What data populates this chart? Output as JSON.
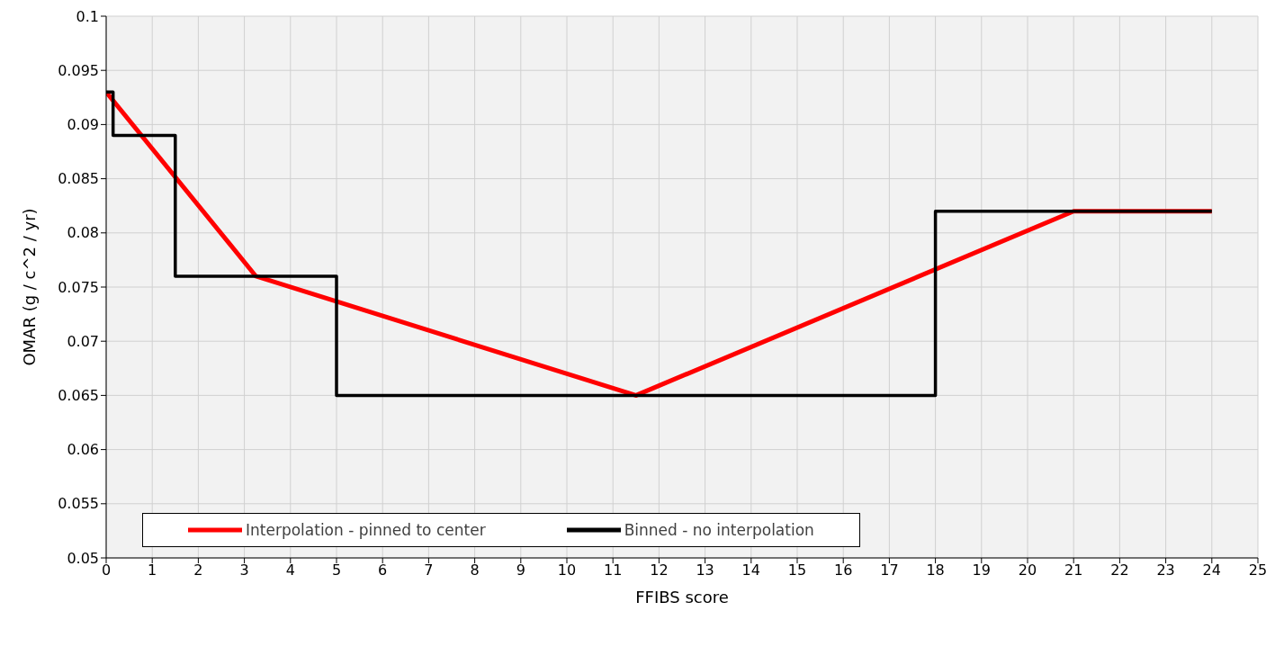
{
  "chart_data": {
    "type": "line",
    "xlabel": "FFIBS score",
    "ylabel": "OMAR (g / c^2 / yr)",
    "xlim": [
      0,
      25
    ],
    "xticks": [
      0,
      1,
      2,
      3,
      4,
      5,
      6,
      7,
      8,
      9,
      10,
      11,
      12,
      13,
      14,
      15,
      16,
      17,
      18,
      19,
      20,
      21,
      22,
      23,
      24,
      25
    ],
    "ylim": [
      0.05,
      0.1
    ],
    "yticks": [
      0.05,
      0.055,
      0.06,
      0.065,
      0.07,
      0.075,
      0.08,
      0.085,
      0.09,
      0.095,
      0.1
    ],
    "grid": true,
    "legend": "bottom left",
    "marker": "none",
    "line_style": "solid",
    "series": [
      {
        "name": "Interpolation - pinned to center",
        "color": "#ff0000",
        "type": "line",
        "x": [
          0,
          3.25,
          11.5,
          21,
          24
        ],
        "values": [
          0.093,
          0.076,
          0.065,
          0.082,
          0.082
        ]
      },
      {
        "name": "Binned - no interpolation",
        "color": "#000000",
        "type": "step",
        "x": [
          0,
          0.15,
          1.5,
          5,
          18,
          24
        ],
        "values": [
          0.093,
          0.089,
          0.076,
          0.065,
          0.082,
          0.082
        ]
      }
    ]
  }
}
